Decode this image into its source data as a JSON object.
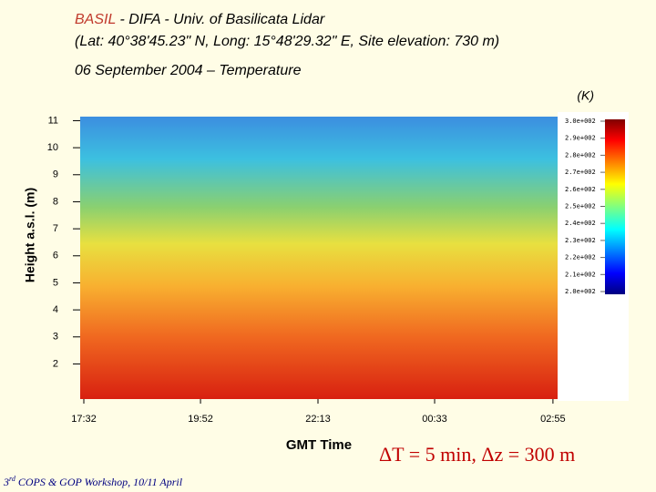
{
  "header": {
    "title_highlight": "BASIL",
    "title_rest": " - DIFA - Univ. of Basilicata Lidar",
    "location": "(Lat: 40°38'45.23\" N, Long: 15°48'29.32\" E, Site elevation: 730 m)",
    "subtitle": "06 September 2004 – Temperature"
  },
  "chart_data": {
    "type": "heatmap",
    "y_label": "Height a.s.l. (m)",
    "x_label": "GMT Time",
    "ylim": [
      0.7,
      11.15
    ],
    "yticks": [
      2,
      3,
      4,
      5,
      6,
      7,
      8,
      9,
      10,
      11
    ],
    "xlim": [
      17.46,
      27.01
    ],
    "xticks": [
      {
        "value": 17.533,
        "label": "17:32"
      },
      {
        "value": 19.867,
        "label": "19:52"
      },
      {
        "value": 22.217,
        "label": "22:13"
      },
      {
        "value": 24.55,
        "label": "00:33"
      },
      {
        "value": 26.917,
        "label": "02:55"
      }
    ],
    "colorbar": {
      "label": "(K)",
      "lim": [
        200,
        300
      ],
      "ticks": [
        {
          "value": 300,
          "label": "3.0e+002"
        },
        {
          "value": 290,
          "label": "2.9e+002"
        },
        {
          "value": 280,
          "label": "2.8e+002"
        },
        {
          "value": 270,
          "label": "2.7e+002"
        },
        {
          "value": 260,
          "label": "2.6e+002"
        },
        {
          "value": 250,
          "label": "2.5e+002"
        },
        {
          "value": 240,
          "label": "2.4e+002"
        },
        {
          "value": 230,
          "label": "2.3e+002"
        },
        {
          "value": 220,
          "label": "2.2e+002"
        },
        {
          "value": 210,
          "label": "2.1e+002"
        },
        {
          "value": 200,
          "label": "2.0e+002"
        }
      ]
    }
  },
  "annotation": "ΔT = 5 min, Δz = 300 m",
  "footer": {
    "number": "3",
    "suffix": "rd",
    "text": " COPS & GOP Workshop, 10/11 April"
  }
}
